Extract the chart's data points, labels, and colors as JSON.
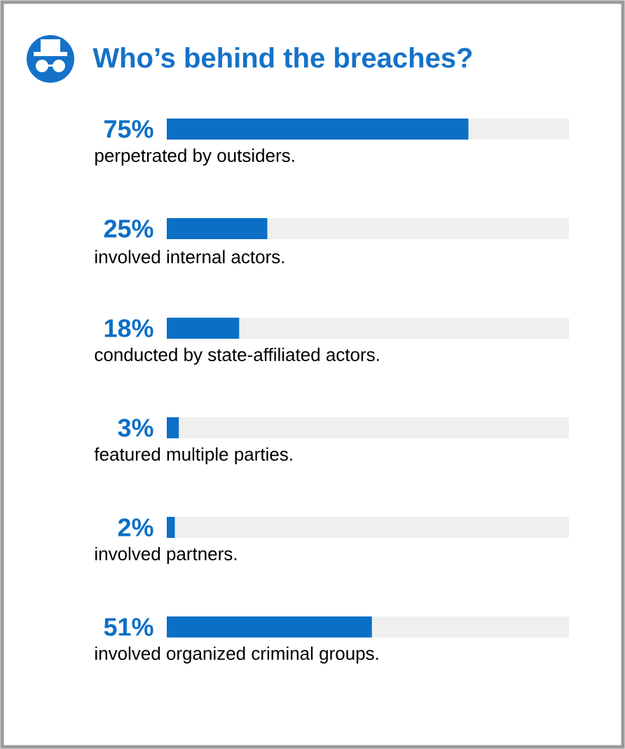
{
  "chart_data": {
    "type": "bar",
    "orientation": "horizontal",
    "title": "Who’s behind the breaches?",
    "categories": [
      "perpetrated by outsiders.",
      "involved internal actors.",
      "conducted by state-affiliated actors.",
      "featured multiple parties.",
      "involved partners.",
      "involved organized criminal groups."
    ],
    "values": [
      75,
      25,
      18,
      3,
      2,
      51
    ],
    "value_labels": [
      "75%",
      "25%",
      "18%",
      "3%",
      "2%",
      "51%"
    ],
    "color": "#0b6fc6",
    "xlim": [
      0,
      100
    ]
  }
}
